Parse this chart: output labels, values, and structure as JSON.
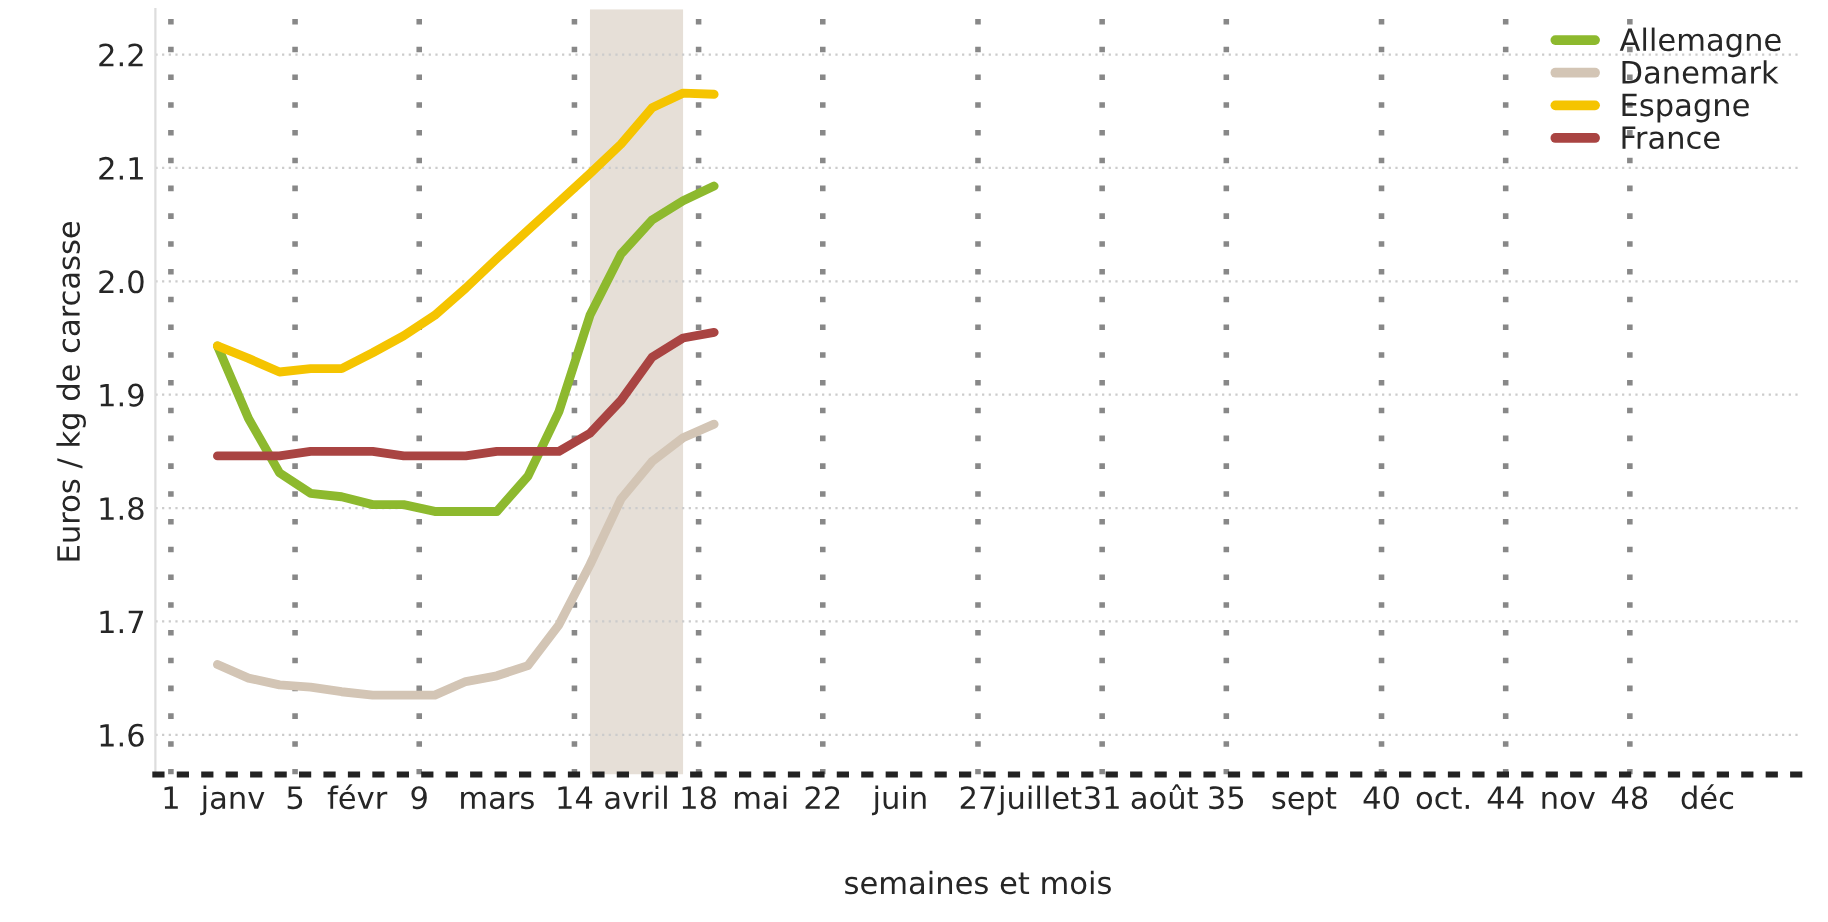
{
  "chart_data": {
    "type": "line",
    "xlabel": "semaines et mois",
    "ylabel": "Euros / kg de carcasse",
    "x": [
      2,
      3,
      4,
      5,
      6,
      7,
      8,
      9,
      10,
      11,
      12,
      13,
      14,
      15,
      16,
      17,
      18
    ],
    "series": [
      {
        "name": "Allemagne",
        "color": "#8db92e",
        "values": [
          1.943,
          1.879,
          1.831,
          1.813,
          1.81,
          1.803,
          1.803,
          1.797,
          1.797,
          1.797,
          1.828,
          1.885,
          1.97,
          2.024,
          2.054,
          2.071,
          2.084
        ]
      },
      {
        "name": "Danemark",
        "color": "#d3c5b5",
        "values": [
          1.662,
          1.65,
          1.644,
          1.642,
          1.638,
          1.635,
          1.635,
          1.635,
          1.647,
          1.652,
          1.661,
          1.697,
          1.75,
          1.808,
          1.841,
          1.862,
          1.874
        ]
      },
      {
        "name": "Espagne",
        "color": "#f5c400",
        "values": [
          1.943,
          1.932,
          1.92,
          1.923,
          1.923,
          1.937,
          1.952,
          1.97,
          1.994,
          2.02,
          2.045,
          2.07,
          2.095,
          2.121,
          2.153,
          2.166,
          2.165
        ]
      },
      {
        "name": "France",
        "color": "#a94442",
        "values": [
          1.846,
          1.846,
          1.846,
          1.85,
          1.85,
          1.85,
          1.846,
          1.846,
          1.846,
          1.85,
          1.85,
          1.85,
          1.866,
          1.895,
          1.933,
          1.95,
          1.955
        ]
      }
    ],
    "xlim": [
      0,
      53
    ],
    "xticks": [
      {
        "value": 0.5,
        "label": "1"
      },
      {
        "value": 2.5,
        "label": "janv"
      },
      {
        "value": 4.5,
        "label": "5"
      },
      {
        "value": 6.5,
        "label": "févr"
      },
      {
        "value": 8.5,
        "label": "9"
      },
      {
        "value": 11,
        "label": "mars"
      },
      {
        "value": 13.5,
        "label": "14"
      },
      {
        "value": 15.5,
        "label": "avril"
      },
      {
        "value": 17.5,
        "label": "18"
      },
      {
        "value": 19.5,
        "label": "mai"
      },
      {
        "value": 21.5,
        "label": "22"
      },
      {
        "value": 24,
        "label": "juin"
      },
      {
        "value": 26.5,
        "label": "27"
      },
      {
        "value": 28.5,
        "label": "juillet"
      },
      {
        "value": 30.5,
        "label": "31"
      },
      {
        "value": 32.5,
        "label": "août"
      },
      {
        "value": 34.5,
        "label": "35"
      },
      {
        "value": 37,
        "label": "sept"
      },
      {
        "value": 39.5,
        "label": "40"
      },
      {
        "value": 41.5,
        "label": "oct."
      },
      {
        "value": 43.5,
        "label": "44"
      },
      {
        "value": 45.5,
        "label": "nov"
      },
      {
        "value": 47.5,
        "label": "48"
      },
      {
        "value": 50,
        "label": "déc"
      }
    ],
    "ylim": [
      1.565,
      2.24
    ],
    "yticks": [
      1.6,
      1.7,
      1.8,
      1.9,
      {
        "value": 2.0,
        "label": "2.0"
      },
      2.1,
      2.2
    ],
    "bands": [
      {
        "axis": "x",
        "from": 14,
        "to": 17,
        "color": "#e6dfd7"
      }
    ],
    "grid": true,
    "legend": "top right",
    "marker": "none",
    "line_style": "solid"
  }
}
